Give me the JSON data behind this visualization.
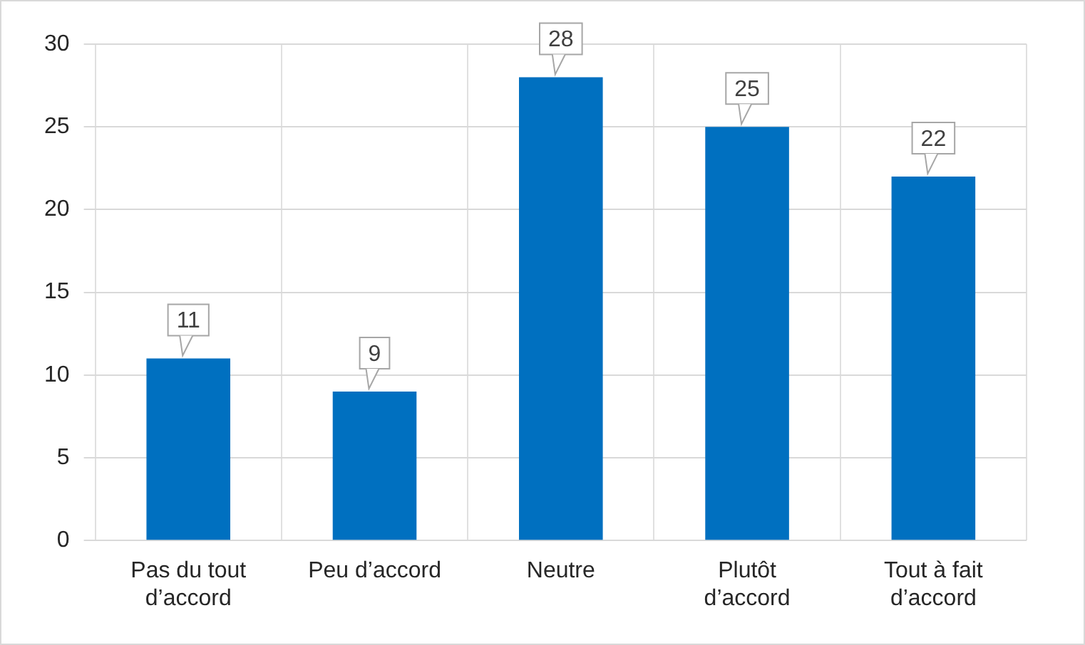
{
  "chart_data": {
    "type": "bar",
    "categories": [
      "Pas du tout d’accord",
      "Peu d’accord",
      "Neutre",
      "Plutôt d’accord",
      "Tout à fait d’accord"
    ],
    "values": [
      11,
      9,
      28,
      25,
      22
    ],
    "color": "#0070c0",
    "ylim": [
      0,
      30
    ],
    "yticks": [
      0,
      5,
      10,
      15,
      20,
      25,
      30
    ],
    "grid": true,
    "data_labels": true
  }
}
